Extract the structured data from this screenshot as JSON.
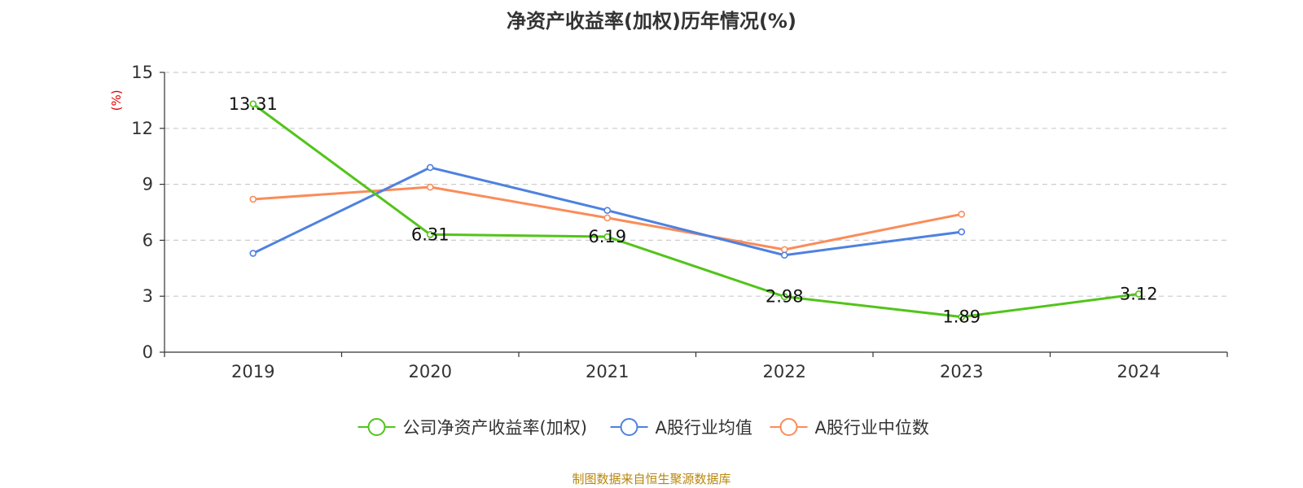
{
  "title": "净资产收益率(加权)历年情况(%)",
  "footer": "制图数据来自恒生聚源数据库",
  "chart_data": {
    "type": "line",
    "title": "净资产收益率(加权)历年情况(%)",
    "ylabel": "(%)",
    "xlabel": "",
    "ylim": [
      0,
      15
    ],
    "yticks": [
      0,
      3,
      6,
      9,
      12,
      15
    ],
    "grid": true,
    "legend_position": "bottom",
    "categories": [
      "2019",
      "2020",
      "2021",
      "2022",
      "2023",
      "2024"
    ],
    "series": [
      {
        "name": "公司净资产收益率(加权)",
        "color": "#52c41a",
        "values": [
          13.31,
          6.31,
          6.19,
          2.98,
          1.89,
          3.12
        ],
        "labels": [
          "13.31",
          "6.31",
          "6.19",
          "2.98",
          "1.89",
          "3.12"
        ],
        "show_labels": true
      },
      {
        "name": "A股行业均值",
        "color": "#4e81e0",
        "values": [
          5.3,
          9.9,
          7.6,
          5.2,
          6.45,
          null
        ],
        "show_labels": false
      },
      {
        "name": "A股行业中位数",
        "color": "#fa8c5a",
        "values": [
          8.2,
          8.85,
          7.2,
          5.5,
          7.4,
          null
        ],
        "show_labels": false
      }
    ]
  }
}
